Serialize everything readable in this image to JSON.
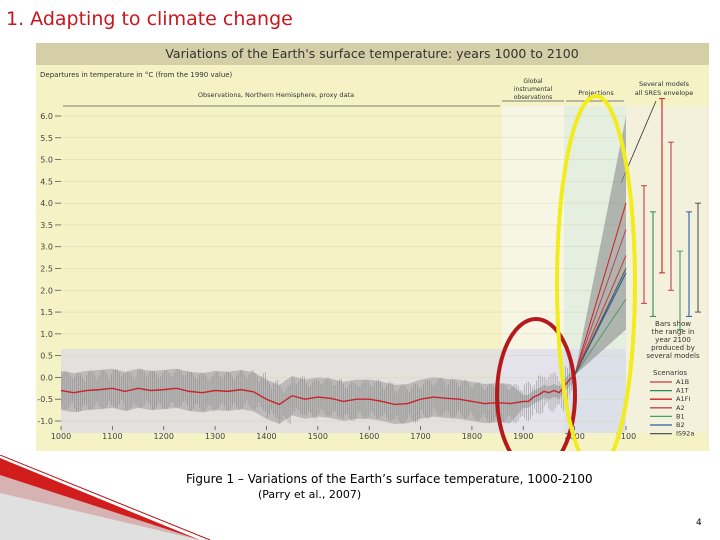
{
  "slide": {
    "title": "1. Adapting to climate change",
    "caption_line1": "Figure 1 – Variations of the Earth’s surface temperature, 1000-2100",
    "caption_line2": "(Parry et al., 2007)",
    "page_number": "4"
  },
  "chart_data": {
    "type": "line",
    "title": "Variations of the Earth's surface temperature: years 1000 to 2100",
    "ylabel": "Departures in temperature in °C (from the 1990 value)",
    "xlabel": "",
    "xlim": [
      1000,
      2100
    ],
    "ylim": [
      -1.0,
      6.0
    ],
    "x_ticks": [
      "1000",
      "1100",
      "1200",
      "1300",
      "1400",
      "1500",
      "1600",
      "1700",
      "1800",
      "1900",
      "2000",
      "2100"
    ],
    "y_ticks": [
      "6.0",
      "5.5",
      "5.0",
      "4.5",
      "4.0",
      "3.5",
      "3.0",
      "2.5",
      "2.0",
      "1.5",
      "1.0",
      "0.5",
      "0.0",
      "-0.5",
      "-1.0"
    ],
    "period_labels": {
      "observations": "Observations, Northern Hemisphere, proxy data",
      "global_line1": "Global",
      "global_line2": "instrumental",
      "global_line3": "observations",
      "projections": "Projections",
      "envelope_line1": "Several models",
      "envelope_line2": "all SRES envelope"
    },
    "bars_note": [
      "Bars show",
      "the range in",
      "year 2100",
      "produced by",
      "several models"
    ],
    "legend_title": "Scenarios",
    "proxy_series": {
      "x": [
        1000,
        1025,
        1050,
        1075,
        1100,
        1125,
        1150,
        1175,
        1200,
        1225,
        1250,
        1275,
        1300,
        1325,
        1350,
        1375,
        1400,
        1425,
        1450,
        1475,
        1500,
        1525,
        1550,
        1575,
        1600,
        1625,
        1650,
        1675,
        1700,
        1725,
        1750,
        1775,
        1800,
        1825,
        1850,
        1875,
        1900,
        1910,
        1920,
        1930,
        1940,
        1950,
        1960,
        1970,
        1980,
        1990,
        2000
      ],
      "y": [
        -0.3,
        -0.35,
        -0.3,
        -0.28,
        -0.25,
        -0.32,
        -0.25,
        -0.3,
        -0.28,
        -0.25,
        -0.32,
        -0.35,
        -0.3,
        -0.32,
        -0.28,
        -0.33,
        -0.5,
        -0.62,
        -0.42,
        -0.5,
        -0.45,
        -0.48,
        -0.55,
        -0.5,
        -0.5,
        -0.55,
        -0.62,
        -0.6,
        -0.5,
        -0.45,
        -0.48,
        -0.5,
        -0.55,
        -0.6,
        -0.58,
        -0.6,
        -0.55,
        -0.55,
        -0.45,
        -0.4,
        -0.32,
        -0.35,
        -0.3,
        -0.35,
        -0.2,
        -0.05,
        0.05
      ]
    },
    "scenarios": [
      {
        "name": "A1B",
        "color": "#c83a3a",
        "y2100": 2.8,
        "range": [
          1.7,
          4.4
        ]
      },
      {
        "name": "A1T",
        "color": "#2f8a55",
        "y2100": 2.4,
        "range": [
          1.4,
          3.8
        ]
      },
      {
        "name": "A1FI",
        "color": "#d11d1d",
        "y2100": 4.0,
        "range": [
          2.4,
          6.4
        ]
      },
      {
        "name": "A2",
        "color": "#b8455a",
        "y2100": 3.4,
        "range": [
          2.0,
          5.4
        ]
      },
      {
        "name": "B1",
        "color": "#4a9a6a",
        "y2100": 1.8,
        "range": [
          1.1,
          2.9
        ]
      },
      {
        "name": "B2",
        "color": "#2c5fa8",
        "y2100": 2.4,
        "range": [
          1.4,
          3.8
        ]
      },
      {
        "name": "IS92a",
        "color": "#555555",
        "y2100": 2.5,
        "range": [
          1.5,
          4.0
        ]
      }
    ],
    "highlight_colors": {
      "ellipse_instrumental": "#b5191c",
      "ellipse_projections": "#f2ec1c"
    }
  }
}
